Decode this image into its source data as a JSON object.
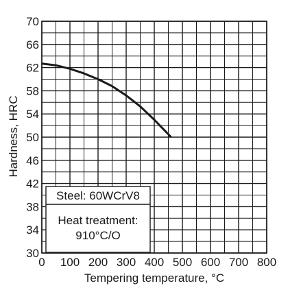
{
  "chart_data": {
    "type": "line",
    "xlabel": "Tempering temperature, °C",
    "ylabel": "Hardness, HRC",
    "xlim": [
      0,
      800
    ],
    "ylim": [
      30,
      70
    ],
    "x_ticks": [
      0,
      100,
      200,
      300,
      400,
      500,
      600,
      700,
      800
    ],
    "y_ticks": [
      30,
      34,
      38,
      42,
      46,
      50,
      54,
      58,
      62,
      66,
      70
    ],
    "grid": true,
    "series": [
      {
        "x": [
          0,
          50,
          100,
          150,
          200,
          250,
          300,
          350,
          400,
          460
        ],
        "y": [
          62.7,
          62.4,
          61.8,
          61.0,
          60.0,
          58.8,
          57.2,
          55.3,
          53.0,
          50.0
        ]
      }
    ],
    "annotations": {
      "steel": "Steel: 60WCrV8",
      "heat_treatment_label": "Heat treatment:",
      "heat_treatment_value": "910°C/O"
    }
  }
}
